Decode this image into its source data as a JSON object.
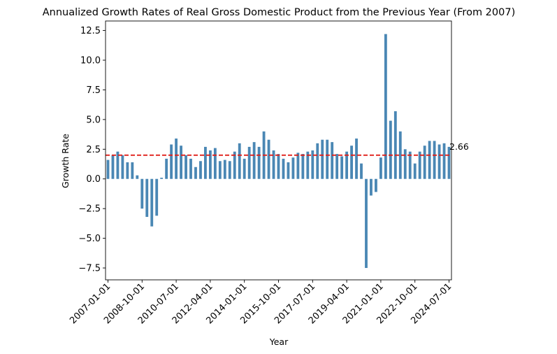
{
  "chart_data": {
    "type": "bar",
    "title": "Annualized Growth Rates of Real Gross Domestic Product from the Previous Year (From 2007)",
    "xlabel": "Year",
    "ylabel": "Growth Rate",
    "ylim": [
      -8.5,
      13.3
    ],
    "yticks": [
      -7.5,
      -5.0,
      -2.5,
      0.0,
      2.5,
      5.0,
      7.5,
      10.0,
      12.5
    ],
    "ytick_labels": [
      "−7.5",
      "−5.0",
      "−2.5",
      "0.0",
      "2.5",
      "5.0",
      "7.5",
      "10.0",
      "12.5"
    ],
    "xtick_labels": [
      "2007-01-01",
      "2008-10-01",
      "2010-07-01",
      "2012-04-01",
      "2014-01-01",
      "2015-10-01",
      "2017-07-01",
      "2019-04-01",
      "2021-01-01",
      "2022-10-01",
      "2024-07-01"
    ],
    "xtick_every": 7,
    "categories": [
      "2007-01-01",
      "2007-04-01",
      "2007-07-01",
      "2007-10-01",
      "2008-01-01",
      "2008-04-01",
      "2008-07-01",
      "2008-10-01",
      "2009-01-01",
      "2009-04-01",
      "2009-07-01",
      "2009-10-01",
      "2010-01-01",
      "2010-04-01",
      "2010-07-01",
      "2010-10-01",
      "2011-01-01",
      "2011-04-01",
      "2011-07-01",
      "2011-10-01",
      "2012-01-01",
      "2012-04-01",
      "2012-07-01",
      "2012-10-01",
      "2013-01-01",
      "2013-04-01",
      "2013-07-01",
      "2013-10-01",
      "2014-01-01",
      "2014-04-01",
      "2014-07-01",
      "2014-10-01",
      "2015-01-01",
      "2015-04-01",
      "2015-07-01",
      "2015-10-01",
      "2016-01-01",
      "2016-04-01",
      "2016-07-01",
      "2016-10-01",
      "2017-01-01",
      "2017-04-01",
      "2017-07-01",
      "2017-10-01",
      "2018-01-01",
      "2018-04-01",
      "2018-07-01",
      "2018-10-01",
      "2019-01-01",
      "2019-04-01",
      "2019-07-01",
      "2019-10-01",
      "2020-01-01",
      "2020-04-01",
      "2020-07-01",
      "2020-10-01",
      "2021-01-01",
      "2021-04-01",
      "2021-07-01",
      "2021-10-01",
      "2022-01-01",
      "2022-04-01",
      "2022-07-01",
      "2022-10-01",
      "2023-01-01",
      "2023-04-01",
      "2023-07-01",
      "2023-10-01",
      "2024-01-01",
      "2024-04-01",
      "2024-07-01"
    ],
    "values": [
      1.6,
      2.0,
      2.3,
      2.0,
      1.4,
      1.4,
      0.3,
      -2.5,
      -3.2,
      -4.0,
      -3.1,
      0.1,
      1.7,
      2.9,
      3.4,
      2.8,
      2.0,
      1.7,
      1.0,
      1.5,
      2.7,
      2.4,
      2.6,
      1.5,
      1.6,
      1.5,
      2.3,
      3.0,
      1.7,
      2.7,
      3.1,
      2.7,
      4.0,
      3.3,
      2.4,
      2.1,
      1.7,
      1.4,
      1.8,
      2.2,
      2.1,
      2.3,
      2.4,
      3.0,
      3.3,
      3.3,
      3.1,
      2.1,
      1.9,
      2.3,
      2.8,
      3.4,
      1.3,
      -7.5,
      -1.4,
      -1.1,
      1.8,
      12.2,
      4.9,
      5.7,
      4.0,
      2.5,
      2.3,
      1.3,
      2.3,
      2.8,
      3.2,
      3.2,
      2.9,
      3.0,
      2.7
    ],
    "bar_color": "#4a87b4",
    "reference_line": {
      "value": 2.0,
      "color": "#e0201b",
      "style": "dashed"
    },
    "annotation": "2.66",
    "grid": false,
    "legend": "none"
  }
}
